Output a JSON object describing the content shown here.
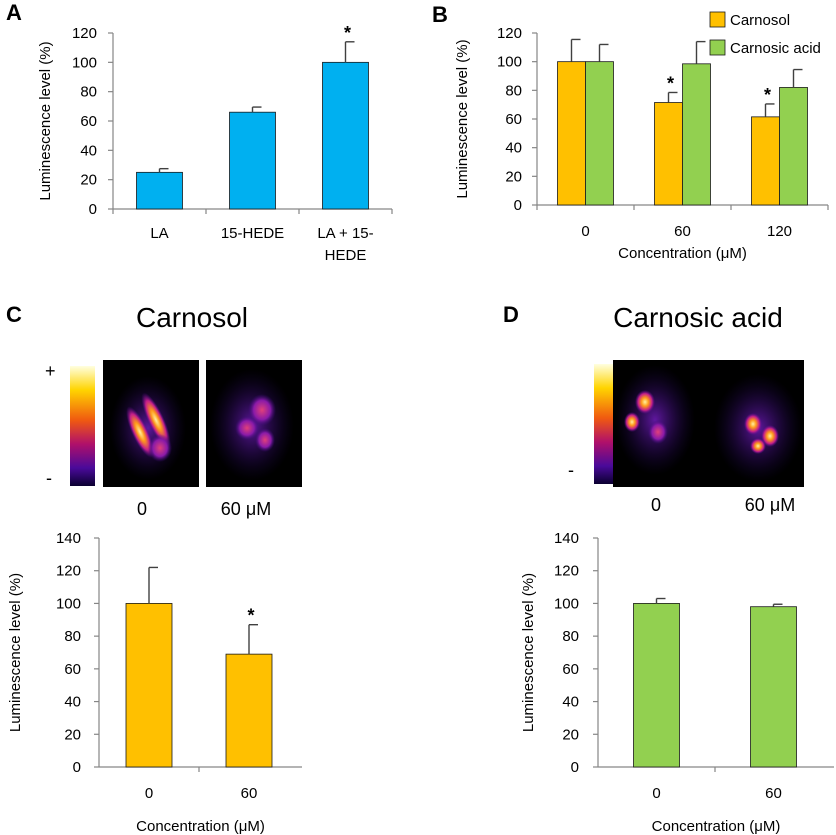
{
  "colors": {
    "blue": "#00B0F0",
    "orange": "#FFC000",
    "green": "#92D050",
    "axis": "#868686",
    "error": "#404040"
  },
  "panel_letters": [
    "A",
    "B",
    "C",
    "D"
  ],
  "panel_titles": {
    "C": "Carnosol",
    "D": "Carnosic acid"
  },
  "colorbar": {
    "plus": "+",
    "minus": "-"
  },
  "image_labels": {
    "c0": "0",
    "c60": "60 μM",
    "d0": "0",
    "d60": "60 μM"
  },
  "chart_data": [
    {
      "id": "A",
      "type": "bar",
      "categories": [
        "LA",
        "15-HEDE",
        "LA + 15-HEDE"
      ],
      "category_lines": [
        [
          "LA"
        ],
        [
          "15-HEDE"
        ],
        [
          "LA + 15-",
          "HEDE"
        ]
      ],
      "values": [
        25,
        66,
        100
      ],
      "errors": [
        2.5,
        3.5,
        14
      ],
      "significant": [
        false,
        false,
        true
      ],
      "ylabel": "Luminescence level (%)",
      "xlabel": "",
      "ylim": [
        0,
        120
      ],
      "yticks": [
        0,
        20,
        40,
        60,
        80,
        100,
        120
      ],
      "color": "#00B0F0",
      "grid": false
    },
    {
      "id": "B",
      "type": "bar",
      "categories": [
        "0",
        "60",
        "120"
      ],
      "series": [
        {
          "name": "Carnosol",
          "values": [
            100,
            71.5,
            61.5
          ],
          "errors": [
            15.5,
            7,
            9
          ],
          "significant": [
            false,
            true,
            true
          ],
          "color": "#FFC000"
        },
        {
          "name": "Carnosic acid",
          "values": [
            100,
            98.5,
            82
          ],
          "errors": [
            12,
            15.5,
            12.5
          ],
          "significant": [
            false,
            false,
            false
          ],
          "color": "#92D050"
        }
      ],
      "ylabel": "Luminescence level (%)",
      "xlabel": "Concentration (μM)",
      "ylim": [
        0,
        120
      ],
      "yticks": [
        0,
        20,
        40,
        60,
        80,
        100,
        120
      ],
      "legend": "top-right",
      "grid": false
    },
    {
      "id": "C",
      "type": "bar",
      "categories": [
        "0",
        "60"
      ],
      "values": [
        100,
        69
      ],
      "errors": [
        22,
        18
      ],
      "significant": [
        false,
        true
      ],
      "ylabel": "Luminescence level (%)",
      "xlabel": "Concentration (μM)",
      "ylim": [
        0,
        140
      ],
      "yticks": [
        0,
        20,
        40,
        60,
        80,
        100,
        120,
        140
      ],
      "color": "#FFC000",
      "grid": false
    },
    {
      "id": "D",
      "type": "bar",
      "categories": [
        "0",
        "60"
      ],
      "values": [
        100,
        98
      ],
      "errors": [
        3,
        1.5
      ],
      "significant": [
        false,
        false
      ],
      "ylabel": "Luminescence level (%)",
      "xlabel": "Concentration (μM)",
      "ylim": [
        0,
        140
      ],
      "yticks": [
        0,
        20,
        40,
        60,
        80,
        100,
        120,
        140
      ],
      "color": "#92D050",
      "grid": false
    }
  ]
}
